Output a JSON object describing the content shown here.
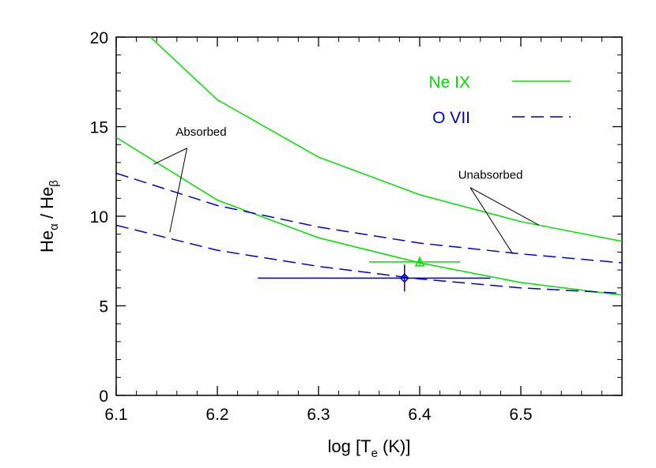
{
  "chart_data": {
    "type": "line",
    "title": "",
    "xlabel": {
      "prefix": "log [T",
      "sub": "e",
      "suffix": " (K)]"
    },
    "ylabel": {
      "p1": "He",
      "s1": "α",
      "mid": " / He",
      "s2": "β"
    },
    "xlim": [
      6.1,
      6.6
    ],
    "ylim": [
      0,
      20
    ],
    "xticks": [
      6.1,
      6.2,
      6.3,
      6.4,
      6.5
    ],
    "xtick_labels": [
      "6.1",
      "6.2",
      "6.3",
      "6.4",
      "6.5"
    ],
    "yticks": [
      0,
      5,
      10,
      15,
      20
    ],
    "ytick_labels": [
      "0",
      "5",
      "10",
      "15",
      "20"
    ],
    "legend": {
      "position": "top-right",
      "items": [
        {
          "label": "Ne IX",
          "color": "#00e000",
          "dash": "solid"
        },
        {
          "label": "O VII",
          "color": "#0000cc",
          "dash": "dashed"
        }
      ]
    },
    "series": [
      {
        "ion": "Ne IX",
        "case": "Unabsorbed",
        "color": "#00e000",
        "dash": "solid",
        "x": [
          6.13,
          6.2,
          6.3,
          6.4,
          6.5,
          6.6
        ],
        "y": [
          20.2,
          16.5,
          13.3,
          11.2,
          9.7,
          8.6
        ]
      },
      {
        "ion": "Ne IX",
        "case": "Absorbed",
        "color": "#00e000",
        "dash": "solid",
        "x": [
          6.1,
          6.2,
          6.3,
          6.4,
          6.5,
          6.6
        ],
        "y": [
          14.4,
          10.9,
          8.8,
          7.4,
          6.3,
          5.6
        ]
      },
      {
        "ion": "O VII",
        "case": "Unabsorbed",
        "color": "#0000cc",
        "dash": "dashed",
        "x": [
          6.1,
          6.2,
          6.3,
          6.4,
          6.5,
          6.6
        ],
        "y": [
          12.4,
          10.6,
          9.4,
          8.5,
          7.9,
          7.4
        ]
      },
      {
        "ion": "O VII",
        "case": "Absorbed",
        "color": "#0000cc",
        "dash": "dashed",
        "x": [
          6.1,
          6.2,
          6.3,
          6.4,
          6.5,
          6.6
        ],
        "y": [
          9.5,
          8.1,
          7.2,
          6.5,
          6.0,
          5.7
        ]
      }
    ],
    "data_points": [
      {
        "ion": "Ne IX",
        "marker": "triangle",
        "color": "#00e000",
        "x": 6.4,
        "y": 7.45,
        "xerr": [
          6.35,
          6.44
        ],
        "yerr": [
          7.2,
          7.75
        ]
      },
      {
        "ion": "O VII",
        "marker": "diamond",
        "color": "#0000cc",
        "x": 6.385,
        "y": 6.55,
        "xerr": [
          6.24,
          6.47
        ],
        "yerr": [
          5.8,
          7.3
        ]
      }
    ],
    "annotations": [
      {
        "text": "Absorbed",
        "label_at": [
          6.184,
          14.5
        ],
        "pointers": [
          {
            "from": [
              6.17,
              13.8
            ],
            "to": [
              6.137,
              12.9
            ]
          },
          {
            "from": [
              6.17,
              13.8
            ],
            "to": [
              6.153,
              9.1
            ]
          }
        ]
      },
      {
        "text": "Unabsorbed",
        "label_at": [
          6.47,
          12.1
        ],
        "pointers": [
          {
            "from": [
              6.45,
              11.6
            ],
            "to": [
              6.518,
              9.5
            ]
          },
          {
            "from": [
              6.45,
              11.6
            ],
            "to": [
              6.492,
              7.9
            ]
          }
        ]
      }
    ]
  }
}
